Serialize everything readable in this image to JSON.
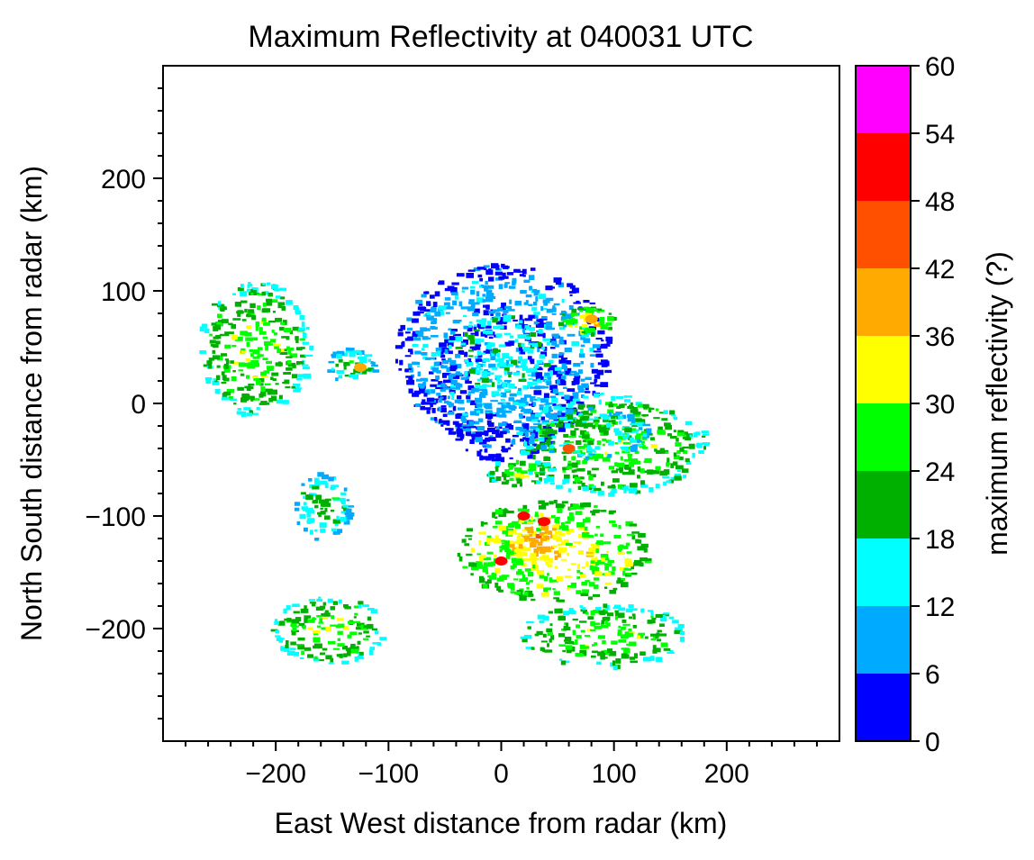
{
  "chart_data": {
    "type": "heatmap",
    "title": "Maximum Reflectivity at 040031 UTC",
    "xlabel": "East West distance from radar (km)",
    "ylabel": "North South distance from radar (km)",
    "xlim": [
      -300,
      300
    ],
    "ylim": [
      -300,
      300
    ],
    "x_ticks": [
      -200,
      -100,
      0,
      100,
      200
    ],
    "x_tick_labels": [
      "−200",
      "−100",
      "0",
      "100",
      "200"
    ],
    "y_ticks": [
      -200,
      -100,
      0,
      100,
      200
    ],
    "y_tick_labels": [
      "−200",
      "−100",
      "0",
      "100",
      "200"
    ],
    "colorbar": {
      "label": "maximum reflectivity (?)",
      "levels": [
        0,
        6,
        12,
        18,
        24,
        30,
        36,
        42,
        48,
        54,
        60
      ],
      "level_labels": [
        "0",
        "6",
        "12",
        "18",
        "24",
        "30",
        "36",
        "42",
        "48",
        "54",
        "60"
      ],
      "colors": [
        "#0000ff",
        "#00aaff",
        "#00ffff",
        "#00b000",
        "#00ff00",
        "#ffff00",
        "#ffaa00",
        "#ff5000",
        "#ff0000",
        "#ff00ff"
      ]
    },
    "echo_regions": [
      {
        "x": 0,
        "y": 20,
        "rx": 65,
        "ry": 70,
        "level": 0
      },
      {
        "x": 0,
        "y": 45,
        "rx": 95,
        "ry": 80,
        "level": 1
      },
      {
        "x": 95,
        "y": -35,
        "rx": 85,
        "ry": 45,
        "level": 3
      },
      {
        "x": 75,
        "y": -25,
        "rx": 55,
        "ry": 22,
        "level": 2
      },
      {
        "x": 45,
        "y": -130,
        "rx": 85,
        "ry": 45,
        "level": 4
      },
      {
        "x": 30,
        "y": -120,
        "rx": 30,
        "ry": 25,
        "level": 5
      },
      {
        "x": 90,
        "y": -205,
        "rx": 75,
        "ry": 28,
        "level": 3
      },
      {
        "x": -220,
        "y": 50,
        "rx": 50,
        "ry": 60,
        "level": 3
      },
      {
        "x": -135,
        "y": 35,
        "rx": 22,
        "ry": 15,
        "level": 2
      },
      {
        "x": 75,
        "y": 75,
        "rx": 25,
        "ry": 12,
        "level": 4
      },
      {
        "x": 15,
        "y": -60,
        "rx": 30,
        "ry": 12,
        "level": 3
      },
      {
        "x": -155,
        "y": -200,
        "rx": 50,
        "ry": 30,
        "level": 3
      },
      {
        "x": -160,
        "y": -90,
        "rx": 25,
        "ry": 30,
        "level": 2
      }
    ],
    "peak_cells": [
      {
        "x": 20,
        "y": -100,
        "value": 50
      },
      {
        "x": 38,
        "y": -105,
        "value": 48
      },
      {
        "x": 0,
        "y": -140,
        "value": 50
      },
      {
        "x": -125,
        "y": 32,
        "value": 40
      },
      {
        "x": 60,
        "y": -40,
        "value": 44
      },
      {
        "x": 80,
        "y": 75,
        "value": 38
      }
    ]
  }
}
